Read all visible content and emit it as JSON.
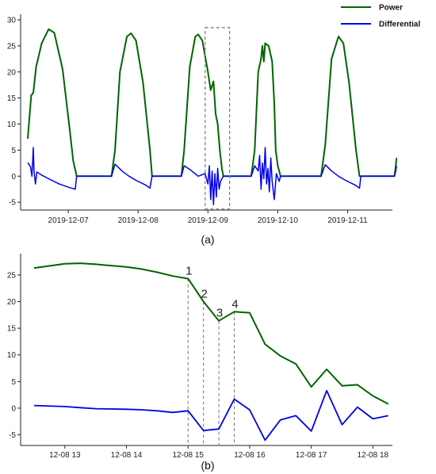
{
  "colors": {
    "power": "#006400",
    "differential": "#0000ee",
    "axis": "#222222",
    "box": "#777777"
  },
  "captions": {
    "a": "(a)",
    "b": "(b)"
  },
  "chart_data": [
    {
      "type": "line",
      "panel": "a",
      "legend": {
        "position": "top-right",
        "entries": [
          "Power",
          "Differential"
        ]
      },
      "x_ticks": [
        "2019-12-07",
        "2019-12-08",
        "2019-12-09",
        "2019-12-10",
        "2019-12-11"
      ],
      "y_ticks": [
        -5,
        0,
        5,
        10,
        15,
        20,
        25,
        30
      ],
      "ylim": [
        -6.5,
        30
      ],
      "xlim_days": [
        "2019-12-06 10:00",
        "2019-12-11 11:00"
      ],
      "series": [
        {
          "name": "Power",
          "points": [
            [
              0.0,
              7.2
            ],
            [
              0.05,
              15.5
            ],
            [
              0.08,
              16.0
            ],
            [
              0.12,
              21.0
            ],
            [
              0.2,
              25.5
            ],
            [
              0.3,
              28.2
            ],
            [
              0.38,
              27.5
            ],
            [
              0.5,
              20.5
            ],
            [
              0.6,
              9.0
            ],
            [
              0.65,
              3.0
            ],
            [
              0.7,
              0.0
            ],
            [
              1.2,
              0.0
            ],
            [
              1.25,
              5.0
            ],
            [
              1.32,
              20.0
            ],
            [
              1.42,
              26.8
            ],
            [
              1.48,
              27.4
            ],
            [
              1.55,
              26.0
            ],
            [
              1.65,
              18.0
            ],
            [
              1.75,
              5.0
            ],
            [
              1.78,
              0.0
            ],
            [
              2.2,
              0.0
            ],
            [
              2.24,
              5.0
            ],
            [
              2.32,
              21.0
            ],
            [
              2.4,
              26.8
            ],
            [
              2.44,
              27.2
            ],
            [
              2.5,
              26.0
            ],
            [
              2.58,
              20.0
            ],
            [
              2.62,
              16.5
            ],
            [
              2.66,
              18.2
            ],
            [
              2.69,
              12.0
            ],
            [
              2.72,
              10.0
            ],
            [
              2.75,
              5.0
            ],
            [
              2.78,
              1.5
            ],
            [
              2.8,
              0.0
            ],
            [
              3.2,
              0.0
            ],
            [
              3.25,
              5.0
            ],
            [
              3.3,
              20.0
            ],
            [
              3.34,
              22.5
            ],
            [
              3.36,
              25.0
            ],
            [
              3.38,
              22.0
            ],
            [
              3.4,
              25.5
            ],
            [
              3.45,
              25.0
            ],
            [
              3.5,
              22.0
            ],
            [
              3.53,
              14.0
            ],
            [
              3.55,
              5.0
            ],
            [
              3.58,
              2.0
            ],
            [
              3.62,
              0.0
            ],
            [
              4.2,
              0.0
            ],
            [
              4.26,
              6.0
            ],
            [
              4.35,
              22.5
            ],
            [
              4.45,
              26.8
            ],
            [
              4.52,
              25.5
            ],
            [
              4.6,
              18.0
            ],
            [
              4.7,
              5.0
            ],
            [
              4.75,
              0.0
            ],
            [
              5.25,
              0.0
            ],
            [
              5.27,
              2.0
            ],
            [
              5.28,
              3.5
            ]
          ]
        },
        {
          "name": "Differential",
          "points": [
            [
              0.0,
              2.6
            ],
            [
              0.04,
              1.8
            ],
            [
              0.06,
              0.0
            ],
            [
              0.08,
              5.5
            ],
            [
              0.09,
              1.0
            ],
            [
              0.11,
              -1.5
            ],
            [
              0.13,
              0.8
            ],
            [
              0.2,
              0.2
            ],
            [
              0.3,
              -0.5
            ],
            [
              0.45,
              -1.5
            ],
            [
              0.6,
              -2.2
            ],
            [
              0.68,
              -2.5
            ],
            [
              0.7,
              0.0
            ],
            [
              1.2,
              0.0
            ],
            [
              1.25,
              2.3
            ],
            [
              1.35,
              1.0
            ],
            [
              1.45,
              0.0
            ],
            [
              1.55,
              -0.8
            ],
            [
              1.7,
              -1.8
            ],
            [
              1.75,
              -2.3
            ],
            [
              1.78,
              0.0
            ],
            [
              2.2,
              0.0
            ],
            [
              2.24,
              2.0
            ],
            [
              2.32,
              1.3
            ],
            [
              2.44,
              0.0
            ],
            [
              2.54,
              0.5
            ],
            [
              2.58,
              -1.5
            ],
            [
              2.6,
              2.0
            ],
            [
              2.62,
              -4.5
            ],
            [
              2.64,
              1.0
            ],
            [
              2.66,
              -5.5
            ],
            [
              2.68,
              0.5
            ],
            [
              2.7,
              -4.0
            ],
            [
              2.72,
              1.5
            ],
            [
              2.74,
              -2.5
            ],
            [
              2.76,
              -1.0
            ],
            [
              2.8,
              0.0
            ],
            [
              3.2,
              0.0
            ],
            [
              3.25,
              2.0
            ],
            [
              3.3,
              1.0
            ],
            [
              3.32,
              4.0
            ],
            [
              3.34,
              -2.5
            ],
            [
              3.36,
              2.5
            ],
            [
              3.38,
              -0.5
            ],
            [
              3.4,
              5.5
            ],
            [
              3.42,
              -1.5
            ],
            [
              3.44,
              1.5
            ],
            [
              3.46,
              -3.0
            ],
            [
              3.48,
              3.5
            ],
            [
              3.5,
              -1.0
            ],
            [
              3.53,
              -4.5
            ],
            [
              3.56,
              0.5
            ],
            [
              3.6,
              -1.0
            ],
            [
              3.62,
              0.0
            ],
            [
              4.2,
              0.0
            ],
            [
              4.26,
              2.2
            ],
            [
              4.35,
              1.0
            ],
            [
              4.45,
              0.0
            ],
            [
              4.55,
              -0.8
            ],
            [
              4.7,
              -1.8
            ],
            [
              4.75,
              -2.3
            ],
            [
              4.77,
              0.0
            ],
            [
              5.25,
              0.0
            ],
            [
              5.27,
              1.0
            ],
            [
              5.28,
              2.0
            ]
          ]
        }
      ]
    },
    {
      "type": "line",
      "panel": "b",
      "x_ticks": [
        "12-08 13",
        "12-08 14",
        "12-08 15",
        "12-08 16",
        "12-08 17",
        "12-08 18"
      ],
      "y_ticks": [
        -5,
        0,
        5,
        10,
        15,
        20,
        25
      ],
      "ylim": [
        -7,
        29
      ],
      "annotations": [
        {
          "label": "1",
          "x_hour": 15.0,
          "y": 24.3
        },
        {
          "label": "2",
          "x_hour": 15.25,
          "y": 20.0
        },
        {
          "label": "3",
          "x_hour": 15.5,
          "y": 16.4
        },
        {
          "label": "4",
          "x_hour": 15.75,
          "y": 18.1
        }
      ],
      "series": [
        {
          "name": "Power",
          "points": [
            [
              12.5,
              26.3
            ],
            [
              13.0,
              27.1
            ],
            [
              13.25,
              27.2
            ],
            [
              13.5,
              27.0
            ],
            [
              14.0,
              26.5
            ],
            [
              14.25,
              26.1
            ],
            [
              14.5,
              25.5
            ],
            [
              14.75,
              24.8
            ],
            [
              15.0,
              24.3
            ],
            [
              15.25,
              20.0
            ],
            [
              15.5,
              16.4
            ],
            [
              15.75,
              18.1
            ],
            [
              16.0,
              17.9
            ],
            [
              16.25,
              12.0
            ],
            [
              16.5,
              9.8
            ],
            [
              16.75,
              8.3
            ],
            [
              17.0,
              4.0
            ],
            [
              17.25,
              7.3
            ],
            [
              17.5,
              4.2
            ],
            [
              17.75,
              4.4
            ],
            [
              18.0,
              2.3
            ],
            [
              18.25,
              0.8
            ]
          ]
        },
        {
          "name": "Differential",
          "points": [
            [
              12.5,
              0.5
            ],
            [
              13.0,
              0.3
            ],
            [
              13.25,
              0.1
            ],
            [
              13.5,
              -0.1
            ],
            [
              14.0,
              -0.2
            ],
            [
              14.25,
              -0.3
            ],
            [
              14.5,
              -0.5
            ],
            [
              14.75,
              -0.8
            ],
            [
              15.0,
              -0.5
            ],
            [
              15.25,
              -4.2
            ],
            [
              15.5,
              -3.9
            ],
            [
              15.75,
              1.7
            ],
            [
              16.0,
              -0.3
            ],
            [
              16.25,
              -6.0
            ],
            [
              16.5,
              -2.2
            ],
            [
              16.75,
              -1.4
            ],
            [
              17.0,
              -4.3
            ],
            [
              17.25,
              3.3
            ],
            [
              17.5,
              -3.1
            ],
            [
              17.75,
              0.2
            ],
            [
              18.0,
              -2.0
            ],
            [
              18.25,
              -1.4
            ]
          ]
        }
      ]
    }
  ]
}
